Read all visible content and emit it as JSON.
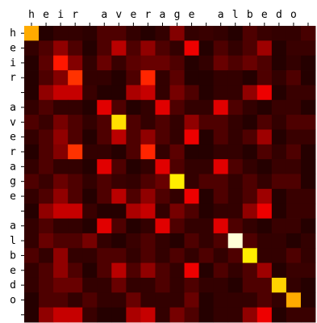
{
  "chart_data": {
    "type": "heatmap",
    "x_tick_labels": [
      "h",
      "e",
      "i",
      "r",
      " ",
      "a",
      "v",
      "e",
      "r",
      "a",
      "g",
      "e",
      " ",
      "a",
      "l",
      "b",
      "e",
      "d",
      "o",
      " "
    ],
    "y_tick_labels": [
      "h",
      "e",
      "i",
      "r",
      " ",
      "a",
      "v",
      "e",
      "r",
      "a",
      "g",
      "e",
      " ",
      "a",
      "l",
      "b",
      "e",
      "d",
      "o",
      " "
    ],
    "colormap": "hot",
    "value_range": [
      0,
      1
    ],
    "grid": false,
    "values": [
      [
        0.62,
        0.04,
        0.06,
        0.06,
        0.05,
        0.1,
        0.1,
        0.06,
        0.04,
        0.06,
        0.18,
        0.06,
        0.07,
        0.06,
        0.04,
        0.1,
        0.07,
        0.06,
        0.06,
        0.09
      ],
      [
        0.06,
        0.1,
        0.2,
        0.1,
        0.04,
        0.1,
        0.26,
        0.1,
        0.2,
        0.1,
        0.06,
        0.34,
        0.04,
        0.1,
        0.06,
        0.1,
        0.22,
        0.04,
        0.07,
        0.07
      ],
      [
        0.04,
        0.12,
        0.4,
        0.18,
        0.06,
        0.14,
        0.07,
        0.12,
        0.14,
        0.14,
        0.1,
        0.04,
        0.06,
        0.14,
        0.1,
        0.14,
        0.1,
        0.04,
        0.06,
        0.04
      ],
      [
        0.04,
        0.1,
        0.18,
        0.44,
        0.06,
        0.06,
        0.04,
        0.1,
        0.42,
        0.06,
        0.12,
        0.04,
        0.04,
        0.06,
        0.06,
        0.04,
        0.1,
        0.06,
        0.1,
        0.04
      ],
      [
        0.04,
        0.2,
        0.28,
        0.28,
        0.07,
        0.04,
        0.04,
        0.24,
        0.28,
        0.06,
        0.16,
        0.1,
        0.04,
        0.06,
        0.06,
        0.2,
        0.34,
        0.04,
        0.07,
        0.07
      ],
      [
        0.06,
        0.1,
        0.06,
        0.06,
        0.04,
        0.32,
        0.1,
        0.04,
        0.06,
        0.32,
        0.1,
        0.06,
        0.06,
        0.32,
        0.1,
        0.06,
        0.04,
        0.07,
        0.07,
        0.04
      ],
      [
        0.1,
        0.07,
        0.16,
        0.1,
        0.06,
        0.1,
        0.7,
        0.1,
        0.06,
        0.1,
        0.06,
        0.2,
        0.1,
        0.1,
        0.06,
        0.04,
        0.1,
        0.06,
        0.1,
        0.1
      ],
      [
        0.06,
        0.1,
        0.2,
        0.1,
        0.04,
        0.1,
        0.26,
        0.1,
        0.2,
        0.1,
        0.06,
        0.34,
        0.04,
        0.1,
        0.06,
        0.1,
        0.22,
        0.04,
        0.07,
        0.07
      ],
      [
        0.04,
        0.1,
        0.18,
        0.44,
        0.06,
        0.06,
        0.04,
        0.1,
        0.42,
        0.06,
        0.12,
        0.04,
        0.04,
        0.06,
        0.06,
        0.04,
        0.1,
        0.06,
        0.1,
        0.04
      ],
      [
        0.06,
        0.1,
        0.06,
        0.06,
        0.04,
        0.32,
        0.1,
        0.04,
        0.06,
        0.32,
        0.1,
        0.06,
        0.06,
        0.32,
        0.1,
        0.06,
        0.04,
        0.07,
        0.07,
        0.04
      ],
      [
        0.1,
        0.07,
        0.14,
        0.1,
        0.06,
        0.1,
        0.07,
        0.06,
        0.1,
        0.14,
        0.72,
        0.06,
        0.1,
        0.1,
        0.06,
        0.1,
        0.06,
        0.1,
        0.1,
        0.04
      ],
      [
        0.06,
        0.1,
        0.2,
        0.1,
        0.04,
        0.1,
        0.26,
        0.1,
        0.2,
        0.1,
        0.06,
        0.34,
        0.04,
        0.1,
        0.06,
        0.1,
        0.22,
        0.04,
        0.07,
        0.07
      ],
      [
        0.04,
        0.2,
        0.28,
        0.28,
        0.07,
        0.04,
        0.04,
        0.24,
        0.28,
        0.06,
        0.16,
        0.1,
        0.04,
        0.06,
        0.06,
        0.2,
        0.34,
        0.04,
        0.07,
        0.07
      ],
      [
        0.06,
        0.1,
        0.06,
        0.06,
        0.04,
        0.32,
        0.1,
        0.04,
        0.06,
        0.32,
        0.1,
        0.06,
        0.06,
        0.32,
        0.1,
        0.06,
        0.04,
        0.07,
        0.07,
        0.04
      ],
      [
        0.06,
        0.14,
        0.1,
        0.1,
        0.16,
        0.06,
        0.04,
        0.07,
        0.1,
        0.06,
        0.04,
        0.1,
        0.06,
        0.1,
        0.96,
        0.1,
        0.06,
        0.06,
        0.04,
        0.06
      ],
      [
        0.1,
        0.06,
        0.2,
        0.06,
        0.06,
        0.1,
        0.1,
        0.06,
        0.1,
        0.06,
        0.1,
        0.06,
        0.1,
        0.06,
        0.1,
        0.72,
        0.06,
        0.06,
        0.1,
        0.06
      ],
      [
        0.06,
        0.1,
        0.2,
        0.1,
        0.04,
        0.1,
        0.26,
        0.1,
        0.2,
        0.1,
        0.06,
        0.34,
        0.04,
        0.1,
        0.06,
        0.1,
        0.22,
        0.04,
        0.07,
        0.07
      ],
      [
        0.06,
        0.1,
        0.14,
        0.14,
        0.06,
        0.06,
        0.14,
        0.06,
        0.06,
        0.1,
        0.06,
        0.1,
        0.06,
        0.06,
        0.04,
        0.1,
        0.1,
        0.68,
        0.06,
        0.04
      ],
      [
        0.04,
        0.1,
        0.1,
        0.06,
        0.1,
        0.06,
        0.06,
        0.14,
        0.06,
        0.06,
        0.06,
        0.14,
        0.04,
        0.06,
        0.06,
        0.06,
        0.1,
        0.06,
        0.62,
        0.04
      ],
      [
        0.04,
        0.2,
        0.28,
        0.28,
        0.07,
        0.04,
        0.04,
        0.24,
        0.28,
        0.06,
        0.16,
        0.1,
        0.04,
        0.06,
        0.06,
        0.2,
        0.34,
        0.04,
        0.07,
        0.07
      ]
    ]
  }
}
